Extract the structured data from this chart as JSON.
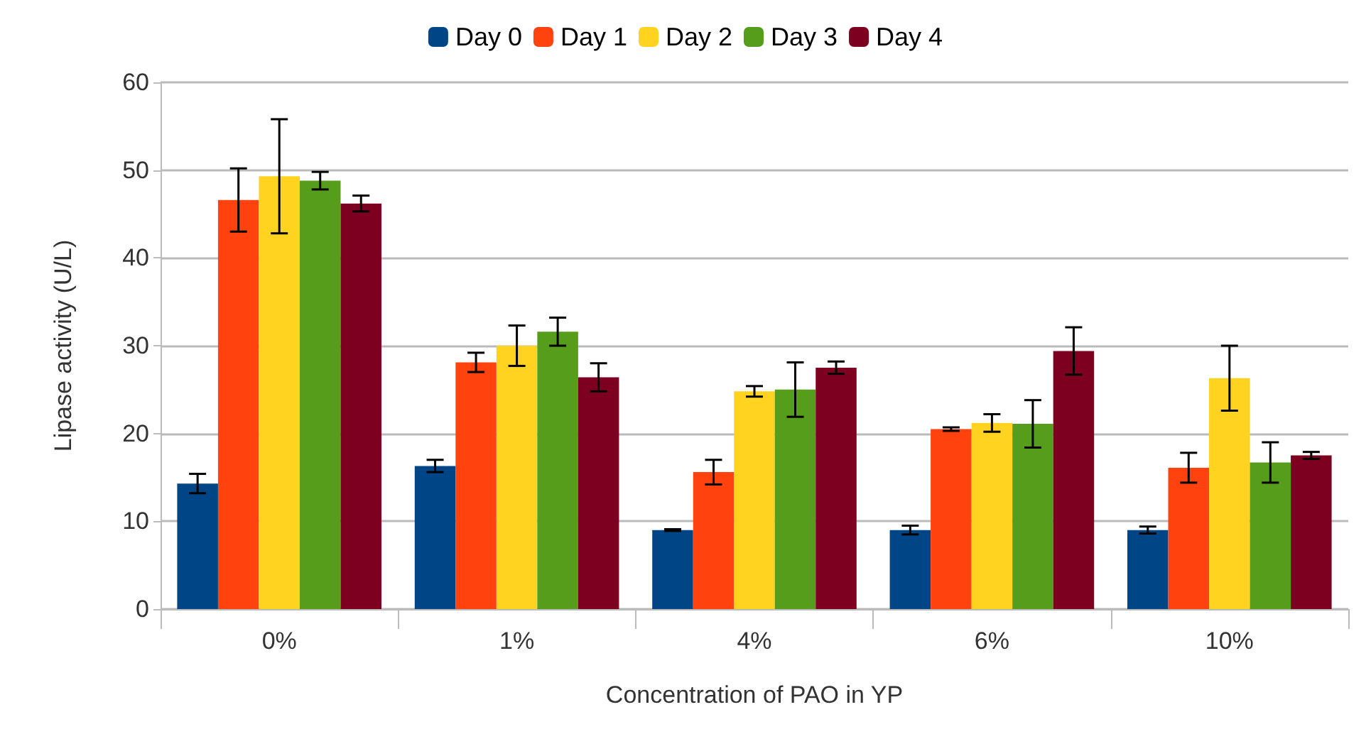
{
  "chart_data": {
    "type": "bar",
    "xlabel": "Concentration of PAO in YP",
    "ylabel": "Lipase activity (U/L)",
    "categories": [
      "0%",
      "1%",
      "4%",
      "6%",
      "10%"
    ],
    "series": [
      {
        "name": "Day 0",
        "color": "#004586",
        "values": [
          14.3,
          16.3,
          9.0,
          9.0,
          9.0
        ],
        "errors": [
          1.1,
          0.7,
          0.1,
          0.5,
          0.4
        ]
      },
      {
        "name": "Day 1",
        "color": "#ff420e",
        "values": [
          46.6,
          28.1,
          15.6,
          20.5,
          16.1
        ],
        "errors": [
          3.6,
          1.1,
          1.4,
          0.2,
          1.7
        ]
      },
      {
        "name": "Day 2",
        "color": "#ffd320",
        "values": [
          49.3,
          30.0,
          24.8,
          21.2,
          26.3
        ],
        "errors": [
          6.5,
          2.3,
          0.6,
          1.0,
          3.7
        ]
      },
      {
        "name": "Day 3",
        "color": "#579d1c",
        "values": [
          48.8,
          31.6,
          25.0,
          21.1,
          16.7
        ],
        "errors": [
          1.0,
          1.6,
          3.1,
          2.7,
          2.3
        ]
      },
      {
        "name": "Day 4",
        "color": "#7e0021",
        "values": [
          46.2,
          26.4,
          27.5,
          29.4,
          17.5
        ],
        "errors": [
          0.9,
          1.6,
          0.7,
          2.7,
          0.4
        ]
      }
    ],
    "ylim": [
      0,
      60
    ],
    "yticks": [
      0,
      10,
      20,
      30,
      40,
      50,
      60
    ],
    "grid": "y",
    "legend": "top"
  }
}
